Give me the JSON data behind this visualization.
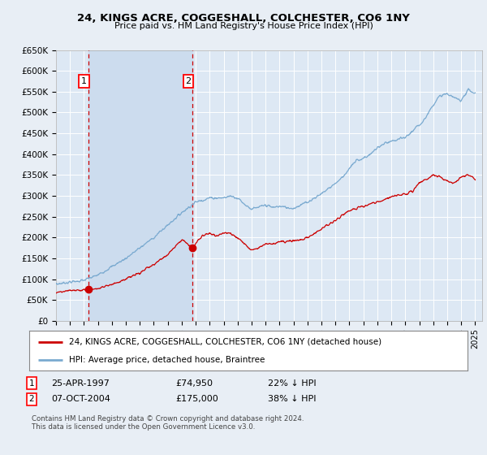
{
  "title": "24, KINGS ACRE, COGGESHALL, COLCHESTER, CO6 1NY",
  "subtitle": "Price paid vs. HM Land Registry's House Price Index (HPI)",
  "ylim": [
    0,
    650000
  ],
  "xlim_start": 1995.0,
  "xlim_end": 2025.5,
  "background_color": "#e8eef5",
  "plot_bg_color": "#dde8f4",
  "shade_color": "#ccdcee",
  "grid_color": "#ffffff",
  "hpi_color": "#7aaad0",
  "price_color": "#cc0000",
  "sale1_year": 1997.31,
  "sale1_price": 74950,
  "sale2_year": 2004.77,
  "sale2_price": 175000,
  "legend_line1": "24, KINGS ACRE, COGGESHALL, COLCHESTER, CO6 1NY (detached house)",
  "legend_line2": "HPI: Average price, detached house, Braintree",
  "copyright": "Contains HM Land Registry data © Crown copyright and database right 2024.\nThis data is licensed under the Open Government Licence v3.0.",
  "yticks": [
    0,
    50000,
    100000,
    150000,
    200000,
    250000,
    300000,
    350000,
    400000,
    450000,
    500000,
    550000,
    600000,
    650000
  ],
  "ytick_labels": [
    "£0",
    "£50K",
    "£100K",
    "£150K",
    "£200K",
    "£250K",
    "£300K",
    "£350K",
    "£400K",
    "£450K",
    "£500K",
    "£550K",
    "£600K",
    "£650K"
  ],
  "hpi_anchors_x": [
    1995.0,
    1996.0,
    1997.0,
    1998.0,
    1999.0,
    2000.0,
    2001.0,
    2002.0,
    2003.0,
    2004.0,
    2005.0,
    2006.0,
    2007.0,
    2007.5,
    2008.0,
    2008.5,
    2009.0,
    2009.5,
    2010.0,
    2010.5,
    2011.0,
    2011.5,
    2012.0,
    2012.5,
    2013.0,
    2013.5,
    2014.0,
    2014.5,
    2015.0,
    2015.5,
    2016.0,
    2016.5,
    2017.0,
    2017.5,
    2018.0,
    2018.5,
    2019.0,
    2019.5,
    2020.0,
    2020.5,
    2021.0,
    2021.5,
    2022.0,
    2022.5,
    2023.0,
    2023.5,
    2024.0,
    2024.5,
    2025.0
  ],
  "hpi_anchors_y": [
    88000,
    93000,
    97000,
    110000,
    130000,
    150000,
    175000,
    200000,
    230000,
    260000,
    285000,
    295000,
    295000,
    300000,
    295000,
    280000,
    268000,
    272000,
    278000,
    272000,
    275000,
    272000,
    270000,
    278000,
    285000,
    295000,
    305000,
    318000,
    330000,
    345000,
    365000,
    385000,
    390000,
    400000,
    415000,
    425000,
    430000,
    435000,
    440000,
    455000,
    470000,
    490000,
    520000,
    540000,
    545000,
    535000,
    530000,
    555000,
    545000
  ],
  "red_anchors_x": [
    1995.0,
    1996.0,
    1997.0,
    1997.31,
    1997.8,
    1998.5,
    1999.0,
    2000.0,
    2001.0,
    2002.0,
    2003.0,
    2004.0,
    2004.77,
    2005.0,
    2005.5,
    2006.0,
    2006.5,
    2007.0,
    2007.5,
    2008.0,
    2008.5,
    2009.0,
    2009.5,
    2010.0,
    2010.5,
    2011.0,
    2011.5,
    2012.0,
    2012.5,
    2013.0,
    2013.5,
    2014.0,
    2014.5,
    2015.0,
    2015.5,
    2016.0,
    2016.5,
    2017.0,
    2017.5,
    2018.0,
    2018.5,
    2019.0,
    2019.5,
    2020.0,
    2020.5,
    2021.0,
    2021.5,
    2022.0,
    2022.5,
    2023.0,
    2023.5,
    2024.0,
    2024.5,
    2025.0
  ],
  "red_anchors_y": [
    68000,
    72000,
    74000,
    74950,
    76000,
    82000,
    88000,
    100000,
    115000,
    135000,
    160000,
    195000,
    175000,
    185000,
    205000,
    210000,
    205000,
    210000,
    210000,
    200000,
    185000,
    170000,
    175000,
    185000,
    185000,
    190000,
    190000,
    192000,
    195000,
    200000,
    210000,
    220000,
    232000,
    240000,
    255000,
    265000,
    270000,
    275000,
    280000,
    285000,
    290000,
    298000,
    302000,
    305000,
    310000,
    330000,
    340000,
    350000,
    345000,
    335000,
    330000,
    345000,
    350000,
    340000
  ]
}
